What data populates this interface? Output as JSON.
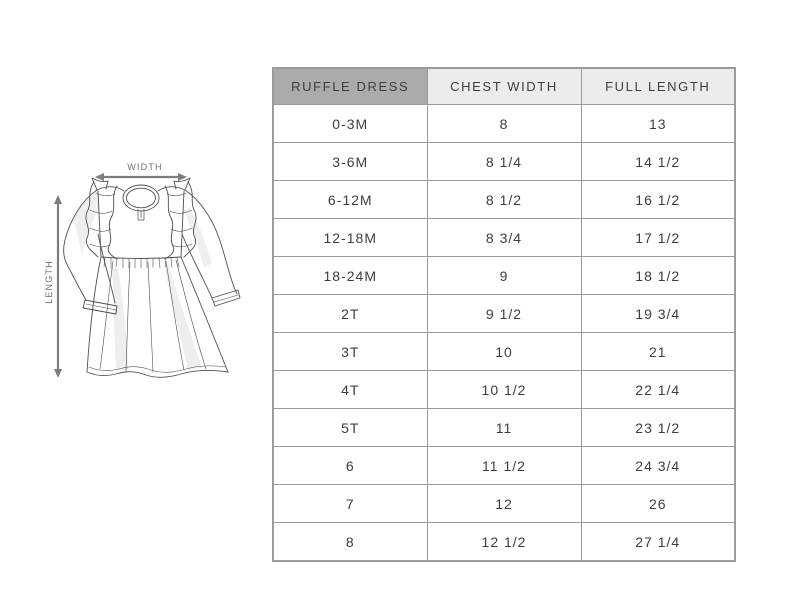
{
  "diagram": {
    "width_label": "WIDTH",
    "length_label": "LENGTH",
    "illustration": "ruffle-dress-line-drawing",
    "arrow_color": "#7d7d7d",
    "line_color": "#4f4f4f"
  },
  "chart_data": {
    "type": "table",
    "columns": [
      "RUFFLE DRESS",
      "CHEST WIDTH",
      "FULL LENGTH"
    ],
    "rows": [
      [
        "0-3M",
        "8",
        "13"
      ],
      [
        "3-6M",
        "8 1/4",
        "14 1/2"
      ],
      [
        "6-12M",
        "8 1/2",
        "16 1/2"
      ],
      [
        "12-18M",
        "8 3/4",
        "17 1/2"
      ],
      [
        "18-24M",
        "9",
        "18 1/2"
      ],
      [
        "2T",
        "9 1/2",
        "19 3/4"
      ],
      [
        "3T",
        "10",
        "21"
      ],
      [
        "4T",
        "10 1/2",
        "22 1/4"
      ],
      [
        "5T",
        "11",
        "23 1/2"
      ],
      [
        "6",
        "11 1/2",
        "24 3/4"
      ],
      [
        "7",
        "12",
        "26"
      ],
      [
        "8",
        "12 1/2",
        "27 1/4"
      ]
    ]
  },
  "colors": {
    "header_primary_bg": "#ababab",
    "header_secondary_bg": "#ebebeb",
    "cell_bg": "#ffffff",
    "border": "#9b9b9b",
    "text": "#3e3e3e"
  }
}
